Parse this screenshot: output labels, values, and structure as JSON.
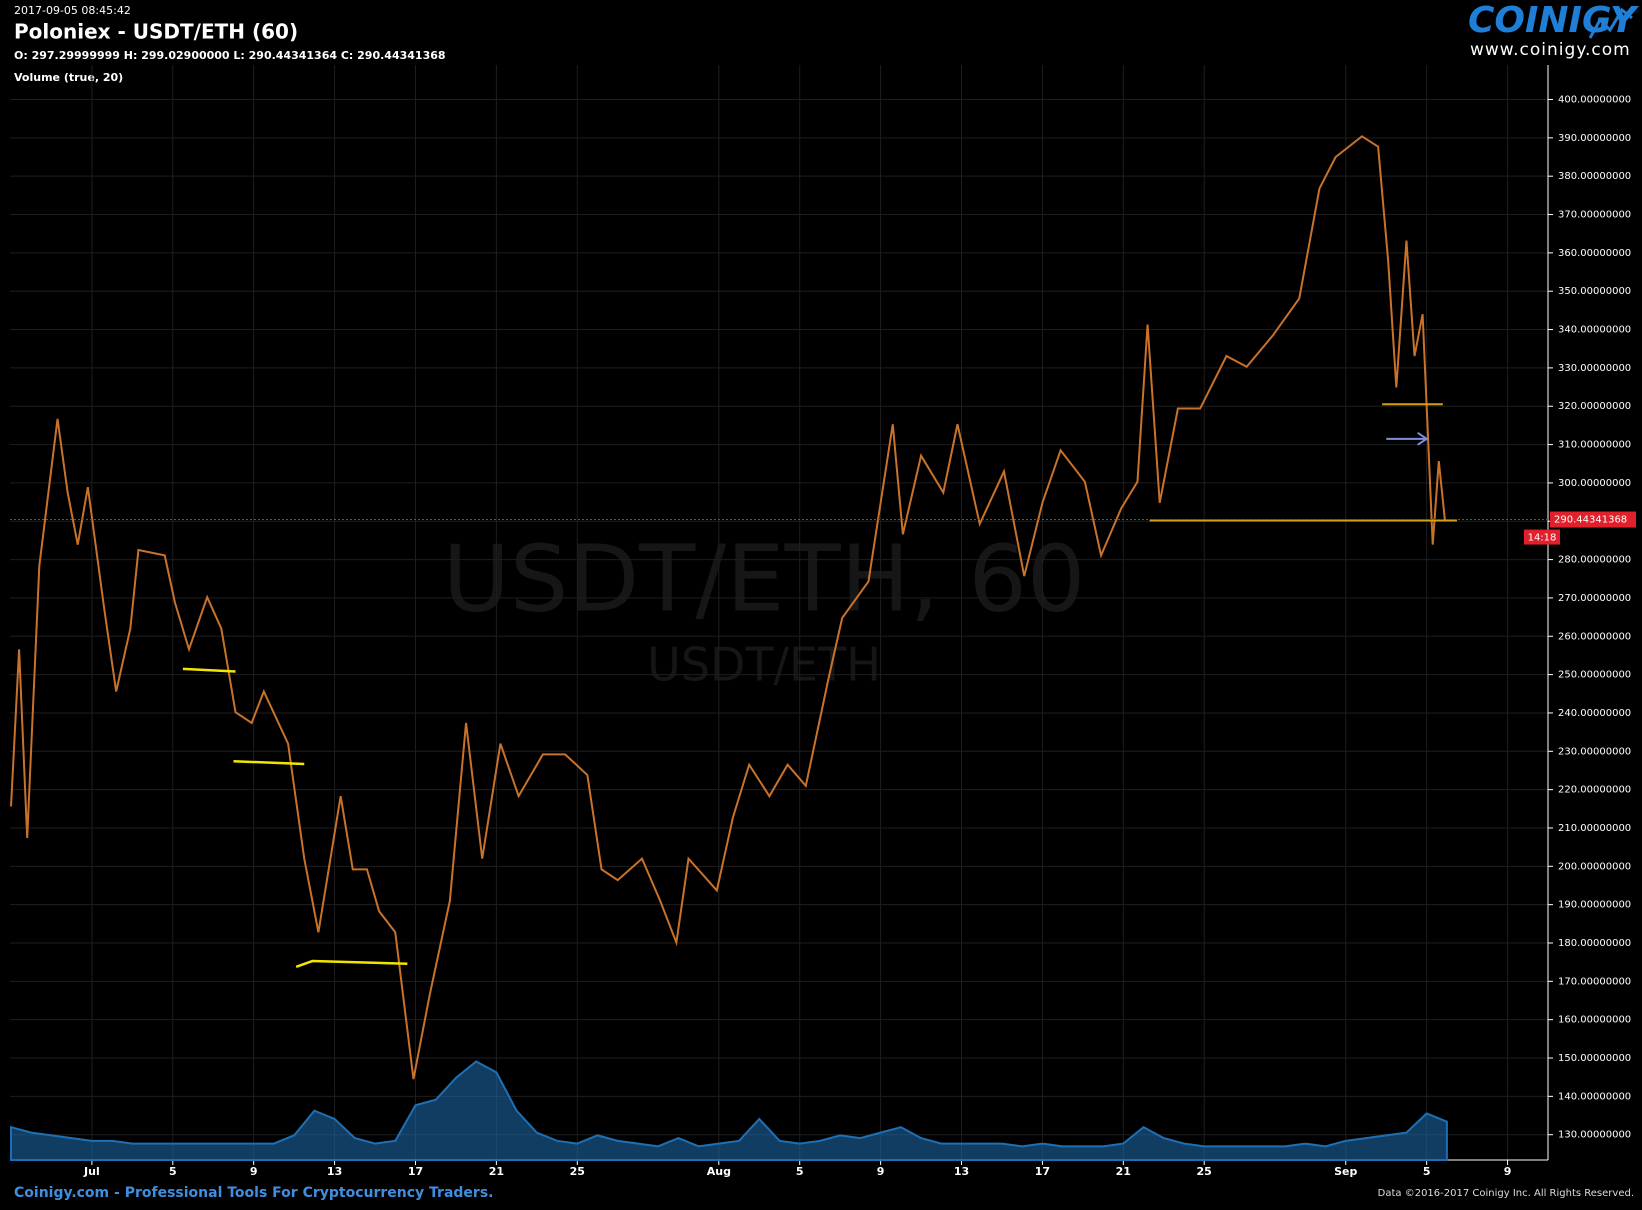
{
  "chart_data": {
    "type": "line",
    "timestamp": "2017-09-05 08:45:42",
    "title": "Poloniex - USDT/ETH (60)",
    "ohlc_text": "O: 297.29999999 H: 299.02900000 L: 290.44341364 C: 290.44341368",
    "volume_label": "Volume (true, 20)",
    "watermark": "USDT/ETH, 60",
    "watermark_sub": "USDT/ETH",
    "logo": "COINIGY",
    "logo_url": "www.coinigy.com",
    "footer": "Coinigy.com - Professional Tools For Cryptocurrency Traders.",
    "copyright": "Data ©2016-2017 Coinigy Inc. All Rights Reserved.",
    "xlim": [
      -4.05,
      72.0
    ],
    "ylim": [
      123.4,
      409.0
    ],
    "y2lim": [
      0,
      400
    ],
    "grid": true,
    "xticks": [
      {
        "value": 0,
        "label": "Jul"
      },
      {
        "value": 4,
        "label": "5"
      },
      {
        "value": 8,
        "label": "9"
      },
      {
        "value": 12,
        "label": "13"
      },
      {
        "value": 16,
        "label": "17"
      },
      {
        "value": 20,
        "label": "21"
      },
      {
        "value": 24,
        "label": "25"
      },
      {
        "value": 31,
        "label": "Aug"
      },
      {
        "value": 35,
        "label": "5"
      },
      {
        "value": 39,
        "label": "9"
      },
      {
        "value": 43,
        "label": "13"
      },
      {
        "value": 47,
        "label": "17"
      },
      {
        "value": 51,
        "label": "21"
      },
      {
        "value": 55,
        "label": "25"
      },
      {
        "value": 62,
        "label": "Sep"
      },
      {
        "value": 66,
        "label": "5"
      },
      {
        "value": 70,
        "label": "9"
      }
    ],
    "yticks": [
      {
        "value": 130,
        "label": "130.00000000"
      },
      {
        "value": 140,
        "label": "140.00000000"
      },
      {
        "value": 150,
        "label": "150.00000000"
      },
      {
        "value": 160,
        "label": "160.00000000"
      },
      {
        "value": 170,
        "label": "170.00000000"
      },
      {
        "value": 180,
        "label": "180.00000000"
      },
      {
        "value": 190,
        "label": "190.00000000"
      },
      {
        "value": 200,
        "label": "200.00000000"
      },
      {
        "value": 210,
        "label": "210.00000000"
      },
      {
        "value": 220,
        "label": "220.00000000"
      },
      {
        "value": 230,
        "label": "230.00000000"
      },
      {
        "value": 240,
        "label": "240.00000000"
      },
      {
        "value": 250,
        "label": "250.00000000"
      },
      {
        "value": 260,
        "label": "260.00000000"
      },
      {
        "value": 270,
        "label": "270.00000000"
      },
      {
        "value": 280,
        "label": "280.00000000"
      },
      {
        "value": 290,
        "label": "290.00000000"
      },
      {
        "value": 300,
        "label": "300.00000000"
      },
      {
        "value": 310,
        "label": "310.00000000"
      },
      {
        "value": 320,
        "label": "320.00000000"
      },
      {
        "value": 330,
        "label": "330.00000000"
      },
      {
        "value": 340,
        "label": "340.00000000"
      },
      {
        "value": 350,
        "label": "350.00000000"
      },
      {
        "value": 360,
        "label": "360.00000000"
      },
      {
        "value": 370,
        "label": "370.00000000"
      },
      {
        "value": 380,
        "label": "380.00000000"
      },
      {
        "value": 390,
        "label": "390.00000000"
      },
      {
        "value": 400,
        "label": "400.00000000"
      }
    ],
    "series": [
      {
        "color": "#c8722a",
        "x": [
          -4.0,
          -3.6,
          -3.2,
          -2.6,
          -1.7,
          -1.2,
          -0.7,
          -0.2,
          0.6,
          1.2,
          1.9,
          2.3,
          3.6,
          4.1,
          4.8,
          5.7,
          6.4,
          7.1,
          7.9,
          8.5,
          9.7,
          10.5,
          11.2,
          12.3,
          12.9,
          13.6,
          14.2,
          15.0,
          15.9,
          16.7,
          17.7,
          18.5,
          19.3,
          20.2,
          21.1,
          22.3,
          23.4,
          24.5,
          25.2,
          26.0,
          27.2,
          28.1,
          28.9,
          29.5,
          30.9,
          31.7,
          32.5,
          33.5,
          34.4,
          35.3,
          36.4,
          37.1,
          38.4,
          39.6,
          40.1,
          41.0,
          42.1,
          42.8,
          43.9,
          45.1,
          46.1,
          47.0,
          47.9,
          49.1,
          49.9,
          50.9,
          51.7,
          52.2,
          52.8,
          53.7,
          54.8,
          56.1,
          57.1,
          58.4,
          59.7,
          60.7,
          61.5,
          62.8,
          63.6,
          64.1,
          64.5,
          65.0,
          65.4,
          65.8,
          66.3,
          66.6,
          66.9
        ],
        "values": [
          215.6,
          256.6,
          207.4,
          278.4,
          316.7,
          297.5,
          283.9,
          298.9,
          267.5,
          245.6,
          262,
          282.5,
          281.1,
          268.9,
          256.6,
          270.2,
          262,
          240.2,
          237.4,
          245.6,
          232,
          202,
          182.8,
          218.3,
          199.2,
          199.2,
          188.3,
          182.8,
          144.5,
          166.4,
          191,
          237.4,
          202,
          232,
          218.3,
          229.2,
          229.2,
          223.8,
          199.2,
          196.4,
          202,
          191,
          180.1,
          202,
          193.7,
          212.8,
          226.5,
          218.3,
          226.5,
          221,
          248.4,
          264.8,
          274.3,
          315.3,
          286.6,
          307.1,
          297.5,
          315.3,
          289.3,
          303,
          275.7,
          294.8,
          308.5,
          300.3,
          281.1,
          293.4,
          300.3,
          341.3,
          294.8,
          319.4,
          319.4,
          333.1,
          330.3,
          338.5,
          348.1,
          376.8,
          385,
          390.4,
          387.7,
          357.7,
          324.9,
          363.2,
          333.1,
          344,
          283.9,
          305.7,
          290.4
        ]
      },
      {
        "color": "#1f6fb4",
        "axis": "y2",
        "x": [
          -4,
          -3,
          -2,
          -1,
          0,
          1,
          2,
          3,
          4,
          5,
          6,
          7,
          8,
          9,
          10,
          11,
          12,
          13,
          14,
          15,
          16,
          17,
          18,
          19,
          20,
          21,
          22,
          23,
          24,
          25,
          26,
          27,
          28,
          29,
          30,
          31,
          32,
          33,
          34,
          35,
          36,
          37,
          38,
          39,
          40,
          41,
          42,
          43,
          44,
          45,
          46,
          47,
          48,
          49,
          50,
          51,
          52,
          53,
          54,
          55,
          56,
          57,
          58,
          59,
          60,
          61,
          62,
          63,
          64,
          65,
          66,
          67
        ],
        "values": [
          12,
          10,
          9,
          8,
          7,
          7,
          6,
          6,
          6,
          6,
          6,
          6,
          6,
          6,
          9,
          18,
          15,
          8,
          6,
          7,
          20,
          22,
          30,
          36,
          32,
          18,
          10,
          7,
          6,
          9,
          7,
          6,
          5,
          8,
          5,
          6,
          7,
          15,
          7,
          6,
          7,
          9,
          8,
          10,
          12,
          8,
          6,
          6,
          6,
          6,
          5,
          6,
          5,
          5,
          5,
          6,
          12,
          8,
          6,
          5,
          5,
          5,
          5,
          5,
          6,
          5,
          7,
          8,
          9,
          10,
          17,
          14
        ]
      }
    ],
    "last_price": 290.44341368,
    "countdown": "14:18",
    "levels": [
      {
        "color": "#d4a017",
        "x": [
          52.3,
          67.5
        ],
        "y": [
          290.2,
          290.2
        ]
      },
      {
        "color": "#d4a017",
        "x": [
          63.8,
          66.8
        ],
        "y": [
          320.5,
          320.5
        ]
      }
    ],
    "drawings": [
      {
        "color": "#f2e600",
        "x": [
          4.5,
          7.1
        ],
        "y": [
          251.5,
          250.8
        ]
      },
      {
        "color": "#f2e600",
        "x": [
          7.0,
          10.5
        ],
        "y": [
          227.4,
          226.7
        ]
      },
      {
        "color": "#f2e600",
        "x": [
          10.1,
          10.9,
          15.6
        ],
        "y": [
          173.8,
          175.3,
          174.6
        ]
      }
    ],
    "arrow": {
      "color": "#7d8fd8",
      "x": [
        64.0,
        66.0
      ],
      "y": [
        311.5,
        311.5
      ]
    }
  }
}
